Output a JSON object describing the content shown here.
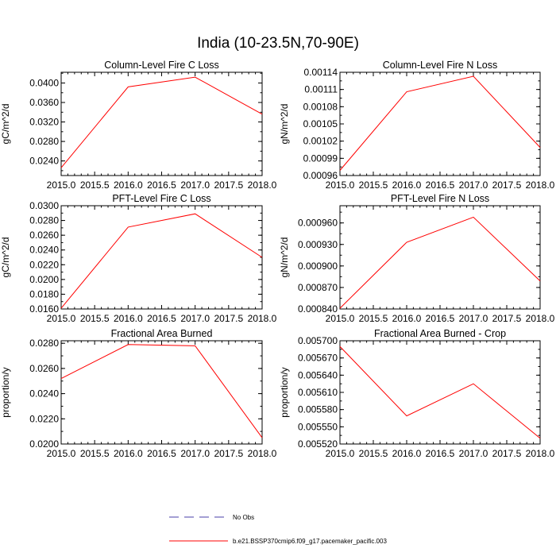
{
  "figure": {
    "title": "India (10-23.5N,70-90E)"
  },
  "legend": {
    "entries": [
      {
        "label": "No Obs",
        "color": "#4a3fa8",
        "dash": true
      },
      {
        "label": "b.e21.BSSP370cmip6.f09_g17.pacemaker_pacific.003",
        "color": "#ff0000",
        "dash": false
      }
    ]
  },
  "chart_data": [
    {
      "type": "line",
      "title": "Column-Level Fire C Loss",
      "ylabel": "gC/m^2/d",
      "xlim": [
        2015.0,
        2018.0
      ],
      "ylim": [
        0.021,
        0.0422
      ],
      "xticks": [
        2015.0,
        2015.5,
        2016.0,
        2016.5,
        2017.0,
        2017.5,
        2018.0
      ],
      "xtick_labels": [
        "2015.0",
        "2015.5",
        "2016.0",
        "2016.5",
        "2017.0",
        "2017.5",
        "2018.0"
      ],
      "yticks": [
        0.024,
        0.028,
        0.032,
        0.036,
        0.04
      ],
      "ytick_labels": [
        "0.0240",
        "0.0280",
        "0.0320",
        "0.0360",
        "0.0400"
      ],
      "series": [
        {
          "color": "#ff0000",
          "x": [
            2015.0,
            2016.0,
            2017.0,
            2018.0
          ],
          "y": [
            0.0226,
            0.0392,
            0.0412,
            0.0336
          ]
        }
      ]
    },
    {
      "type": "line",
      "title": "Column-Level Fire N Loss",
      "ylabel": "gN/m^2/d",
      "xlim": [
        2015.0,
        2018.0
      ],
      "ylim": [
        0.00096,
        0.00114
      ],
      "xticks": [
        2015.0,
        2015.5,
        2016.0,
        2016.5,
        2017.0,
        2017.5,
        2018.0
      ],
      "xtick_labels": [
        "2015.0",
        "2015.5",
        "2016.0",
        "2016.5",
        "2017.0",
        "2017.5",
        "2018.0"
      ],
      "yticks": [
        0.00096,
        0.00099,
        0.00102,
        0.00105,
        0.00108,
        0.00111,
        0.00114
      ],
      "ytick_labels": [
        "0.00096",
        "0.00099",
        "0.00102",
        "0.00105",
        "0.00108",
        "0.00111",
        "0.00114"
      ],
      "series": [
        {
          "color": "#ff0000",
          "x": [
            2015.0,
            2016.0,
            2017.0,
            2018.0
          ],
          "y": [
            0.000969,
            0.001106,
            0.001133,
            0.001009
          ]
        }
      ]
    },
    {
      "type": "line",
      "title": "PFT-Level Fire C Loss",
      "ylabel": "gC/m^2/d",
      "xlim": [
        2015.0,
        2018.0
      ],
      "ylim": [
        0.016,
        0.03
      ],
      "xticks": [
        2015.0,
        2015.5,
        2016.0,
        2016.5,
        2017.0,
        2017.5,
        2018.0
      ],
      "xtick_labels": [
        "2015.0",
        "2015.5",
        "2016.0",
        "2016.5",
        "2017.0",
        "2017.5",
        "2018.0"
      ],
      "yticks": [
        0.016,
        0.018,
        0.02,
        0.022,
        0.024,
        0.026,
        0.028,
        0.03
      ],
      "ytick_labels": [
        "0.0160",
        "0.0180",
        "0.0200",
        "0.0220",
        "0.0240",
        "0.0260",
        "0.0280",
        "0.0300"
      ],
      "series": [
        {
          "color": "#ff0000",
          "x": [
            2015.0,
            2016.0,
            2017.0,
            2018.0
          ],
          "y": [
            0.0161,
            0.0271,
            0.0289,
            0.023
          ]
        }
      ]
    },
    {
      "type": "line",
      "title": "PFT-Level Fire N Loss",
      "ylabel": "gN/m^2/d",
      "xlim": [
        2015.0,
        2018.0
      ],
      "ylim": [
        0.00084,
        0.000984
      ],
      "xticks": [
        2015.0,
        2015.5,
        2016.0,
        2016.5,
        2017.0,
        2017.5,
        2018.0
      ],
      "xtick_labels": [
        "2015.0",
        "2015.5",
        "2016.0",
        "2016.5",
        "2017.0",
        "2017.5",
        "2018.0"
      ],
      "yticks": [
        0.00084,
        0.00087,
        0.0009,
        0.00093,
        0.00096
      ],
      "ytick_labels": [
        "0.000840",
        "0.000870",
        "0.000900",
        "0.000930",
        "0.000960"
      ],
      "series": [
        {
          "color": "#ff0000",
          "x": [
            2015.0,
            2016.0,
            2017.0,
            2018.0
          ],
          "y": [
            0.000841,
            0.000933,
            0.000968,
            0.000879
          ]
        }
      ]
    },
    {
      "type": "line",
      "title": "Fractional Area Burned",
      "ylabel": "proportion/y",
      "xlim": [
        2015.0,
        2018.0
      ],
      "ylim": [
        0.02,
        0.0282
      ],
      "xticks": [
        2015.0,
        2015.5,
        2016.0,
        2016.5,
        2017.0,
        2017.5,
        2018.0
      ],
      "xtick_labels": [
        "2015.0",
        "2015.5",
        "2016.0",
        "2016.5",
        "2017.0",
        "2017.5",
        "2018.0"
      ],
      "yticks": [
        0.02,
        0.022,
        0.024,
        0.026,
        0.028
      ],
      "ytick_labels": [
        "0.0200",
        "0.0220",
        "0.0240",
        "0.0260",
        "0.0280"
      ],
      "series": [
        {
          "color": "#ff0000",
          "x": [
            2015.0,
            2016.0,
            2017.0,
            2018.0
          ],
          "y": [
            0.0252,
            0.0279,
            0.0278,
            0.0205
          ]
        }
      ]
    },
    {
      "type": "line",
      "title": "Fractional Area Burned - Crop",
      "ylabel": "proportion/y",
      "xlim": [
        2015.0,
        2018.0
      ],
      "ylim": [
        0.00552,
        0.0057
      ],
      "xticks": [
        2015.0,
        2015.5,
        2016.0,
        2016.5,
        2017.0,
        2017.5,
        2018.0
      ],
      "xtick_labels": [
        "2015.0",
        "2015.5",
        "2016.0",
        "2016.5",
        "2017.0",
        "2017.5",
        "2018.0"
      ],
      "yticks": [
        0.00552,
        0.00555,
        0.00558,
        0.00561,
        0.00564,
        0.00567,
        0.0057
      ],
      "ytick_labels": [
        "0.005520",
        "0.005550",
        "0.005580",
        "0.005610",
        "0.005640",
        "0.005670",
        "0.005700"
      ],
      "series": [
        {
          "color": "#ff0000",
          "x": [
            2015.0,
            2016.0,
            2017.0,
            2018.0
          ],
          "y": [
            0.00569,
            0.005569,
            0.005625,
            0.00553
          ]
        }
      ]
    }
  ]
}
